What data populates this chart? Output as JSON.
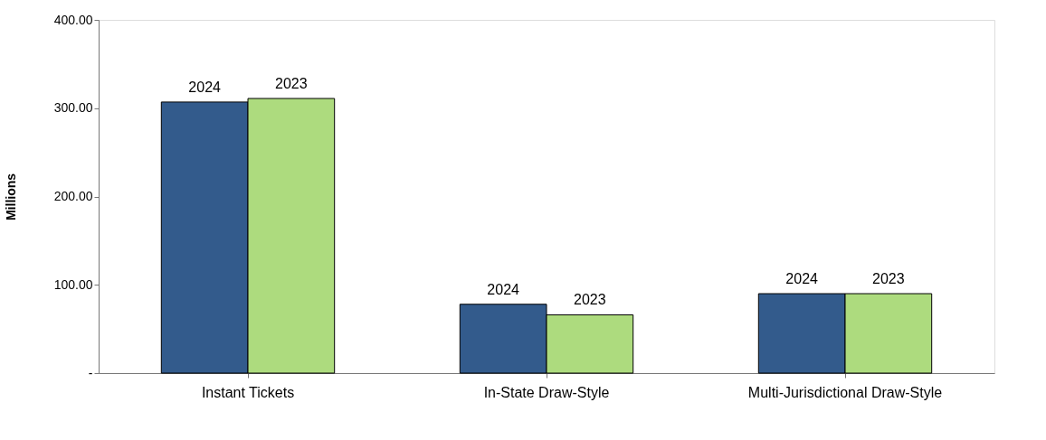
{
  "chart_data": {
    "type": "bar",
    "ylabel": "Millions",
    "categories": [
      "Instant Tickets",
      "In-State Draw-Style",
      "Multi-Jurisdictional Draw-Style"
    ],
    "series": [
      {
        "name": "2024",
        "color": "#335b8c",
        "values": [
          307,
          78,
          90
        ]
      },
      {
        "name": "2023",
        "color": "#addb7e",
        "values": [
          311,
          66,
          90
        ]
      }
    ],
    "ylim": [
      0,
      400
    ],
    "yticks": [
      {
        "value": 0,
        "label": "-"
      },
      {
        "value": 100,
        "label": "100.00"
      },
      {
        "value": 200,
        "label": "200.00"
      },
      {
        "value": 300,
        "label": "300.00"
      },
      {
        "value": 400,
        "label": "400.00"
      }
    ],
    "grid": false,
    "legend": false
  }
}
